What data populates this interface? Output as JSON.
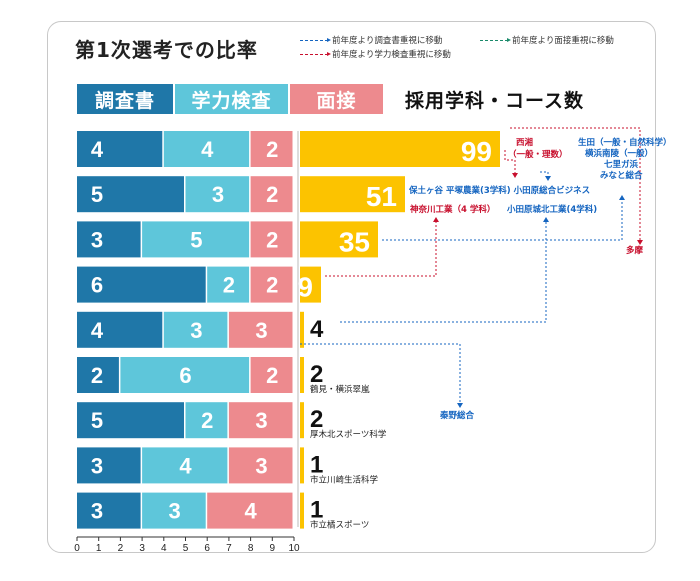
{
  "title": "第1次選考での比率",
  "legend": {
    "items": [
      {
        "label": "前年度より調査書重視に移動",
        "color": "#1565c0"
      },
      {
        "label": "前年度より面接重視に移動",
        "color": "#1a8a6a"
      },
      {
        "label": "前年度より学力検査重視に移動",
        "color": "#c8102e"
      }
    ]
  },
  "headers": {
    "chousasho": "調査書",
    "gakuryoku": "学力検査",
    "mensetsu": "面接",
    "right": "採用学科・コース数"
  },
  "colors": {
    "chousasho": "#1f77a8",
    "gakuryoku": "#5ec6da",
    "mensetsu": "#ed8a8e",
    "count_bar": "#fcc300",
    "arrow_blue": "#1565c0",
    "arrow_red": "#c8102e"
  },
  "chart_data": {
    "type": "bar",
    "xlim": [
      0,
      10
    ],
    "xticks": [
      "0",
      "1",
      "2",
      "3",
      "4",
      "5",
      "6",
      "7",
      "8",
      "9",
      "10"
    ],
    "series": [
      {
        "name": "調査書",
        "values": [
          4,
          5,
          3,
          6,
          4,
          2,
          5,
          3,
          3
        ]
      },
      {
        "name": "学力検査",
        "values": [
          4,
          3,
          5,
          2,
          3,
          6,
          2,
          4,
          3
        ]
      },
      {
        "name": "面接",
        "values": [
          2,
          2,
          2,
          2,
          3,
          2,
          3,
          3,
          4
        ]
      }
    ],
    "counts": [
      99,
      51,
      35,
      9,
      4,
      2,
      2,
      1,
      1
    ],
    "count_labels": [
      "99",
      "51",
      "35",
      "9",
      "4",
      "2",
      "2",
      "1",
      "1"
    ],
    "row_notes": [
      "",
      "",
      "",
      "",
      "",
      "鶴見・横浜翠嵐",
      "厚木北スポーツ科学",
      "市立川崎生活科学",
      "市立橘スポーツ"
    ]
  },
  "annotations": {
    "nishiki": "西湘",
    "nishiki_sub": "（一般・理数）",
    "ikuta1": "生田（一般・自然科学）",
    "ikuta2": "横浜南陵（一般）",
    "ikuta3": "七里ガ浜",
    "ikuta4": "みなと総合",
    "row2_line": "保土ヶ谷 平塚農業(3学科) 小田原総合ビジネス",
    "kanagawa": "神奈川工業（4 学科）",
    "odawara_jo": "小田原城北工業(4学科)",
    "tama": "多摩",
    "hadano": "秦野総合"
  }
}
